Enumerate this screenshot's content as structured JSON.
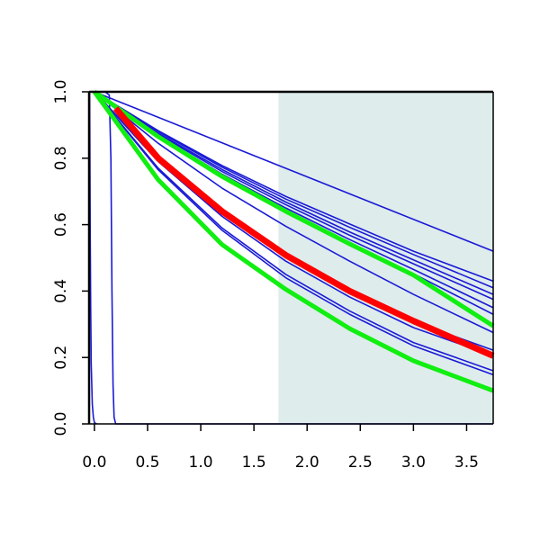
{
  "chart_data": {
    "type": "line",
    "title": "",
    "xlabel": "",
    "ylabel": "",
    "xlim": [
      -0.05,
      3.75
    ],
    "ylim": [
      0.0,
      1.0
    ],
    "grid": false,
    "legend": "none",
    "x_ticks": [
      0.0,
      0.5,
      1.0,
      1.5,
      2.0,
      2.5,
      3.0,
      3.5
    ],
    "x_tick_labels": [
      "0.0",
      "0.5",
      "1.0",
      "1.5",
      "2.0",
      "2.5",
      "3.0",
      "3.5"
    ],
    "y_ticks": [
      0.0,
      0.2,
      0.4,
      0.6,
      0.8,
      1.0
    ],
    "y_tick_labels": [
      "0.0",
      "0.2",
      "0.4",
      "0.6",
      "0.8",
      "1.0"
    ],
    "shaded_region": {
      "x_from": 1.73,
      "x_to": 3.75,
      "color": "#dfecec"
    },
    "colors": {
      "blue": "#1a1ad6",
      "red": "#ff0000",
      "green": "#11ee11",
      "frame": "#000000"
    },
    "series": [
      {
        "color": "blue",
        "width": 1.6,
        "x": [
          0,
          3.75
        ],
        "y": [
          1.0,
          0.52
        ]
      },
      {
        "color": "blue",
        "width": 1.6,
        "x": [
          0,
          0.6,
          1.2,
          1.8,
          2.4,
          3.0,
          3.75
        ],
        "y": [
          1.0,
          0.883,
          0.778,
          0.685,
          0.602,
          0.52,
          0.43
        ]
      },
      {
        "color": "blue",
        "width": 1.6,
        "x": [
          0,
          0.6,
          1.2,
          1.8,
          2.4,
          3.0,
          3.75
        ],
        "y": [
          1.0,
          0.88,
          0.773,
          0.677,
          0.592,
          0.51,
          0.41
        ]
      },
      {
        "color": "blue",
        "width": 1.6,
        "x": [
          0,
          0.6,
          1.2,
          1.8,
          2.4,
          3.0,
          3.75
        ],
        "y": [
          1.0,
          0.875,
          0.766,
          0.668,
          0.578,
          0.494,
          0.39
        ]
      },
      {
        "color": "blue",
        "width": 1.6,
        "x": [
          0,
          0.6,
          1.2,
          1.8,
          2.4,
          3.0,
          3.75
        ],
        "y": [
          1.0,
          0.872,
          0.76,
          0.66,
          0.568,
          0.482,
          0.375
        ]
      },
      {
        "color": "blue",
        "width": 1.6,
        "x": [
          0,
          0.6,
          1.2,
          1.8,
          2.4,
          3.0,
          3.75
        ],
        "y": [
          1.0,
          0.868,
          0.752,
          0.65,
          0.555,
          0.465,
          0.35
        ]
      },
      {
        "color": "blue",
        "width": 1.6,
        "x": [
          0,
          0.6,
          1.2,
          1.8,
          2.4,
          3.0,
          3.75
        ],
        "y": [
          1.0,
          0.865,
          0.746,
          0.642,
          0.545,
          0.452,
          0.33
        ]
      },
      {
        "color": "blue",
        "width": 1.6,
        "x": [
          0,
          0.6,
          1.2,
          1.8,
          2.4,
          3.0,
          3.75
        ],
        "y": [
          1.0,
          0.845,
          0.71,
          0.595,
          0.49,
          0.39,
          0.275
        ]
      },
      {
        "color": "blue",
        "width": 1.6,
        "x": [
          0,
          0.6,
          1.2,
          1.8,
          2.4,
          3.0,
          3.75
        ],
        "y": [
          1.0,
          0.795,
          0.635,
          0.505,
          0.4,
          0.308,
          0.222
        ]
      },
      {
        "color": "blue",
        "width": 1.6,
        "x": [
          0,
          0.6,
          1.2,
          1.8,
          2.4,
          3.0,
          3.75
        ],
        "y": [
          1.0,
          0.79,
          0.625,
          0.49,
          0.382,
          0.29,
          0.205
        ]
      },
      {
        "color": "blue",
        "width": 1.6,
        "x": [
          0,
          0.6,
          1.2,
          1.8,
          2.4,
          3.0,
          3.75
        ],
        "y": [
          1.0,
          0.77,
          0.59,
          0.45,
          0.34,
          0.245,
          0.16
        ]
      },
      {
        "color": "blue",
        "width": 1.6,
        "x": [
          0,
          0.6,
          1.2,
          1.8,
          2.4,
          3.0,
          3.75
        ],
        "y": [
          1.0,
          0.765,
          0.583,
          0.44,
          0.33,
          0.235,
          0.148
        ]
      },
      {
        "color": "blue",
        "width": 1.6,
        "x": [
          -0.045,
          -0.043,
          -0.04,
          -0.035,
          -0.03,
          -0.02,
          -0.01,
          0.0,
          0.02
        ],
        "y": [
          1.0,
          0.85,
          0.6,
          0.35,
          0.18,
          0.06,
          0.02,
          0.004,
          0.0
        ]
      },
      {
        "color": "blue",
        "width": 1.6,
        "x": [
          -0.03,
          0.1,
          0.14,
          0.155,
          0.165,
          0.175,
          0.185,
          0.2,
          3.75
        ],
        "y": [
          1.0,
          1.0,
          0.99,
          0.8,
          0.4,
          0.12,
          0.02,
          0.0,
          0.0
        ]
      },
      {
        "color": "green",
        "width": 5,
        "x": [
          0,
          0.6,
          1.2,
          1.8,
          2.4,
          3.0,
          3.75
        ],
        "y": [
          1.0,
          0.865,
          0.745,
          0.64,
          0.542,
          0.448,
          0.295
        ]
      },
      {
        "color": "green",
        "width": 5,
        "x": [
          0,
          0.6,
          1.2,
          1.8,
          2.4,
          3.0,
          3.75
        ],
        "y": [
          1.0,
          0.735,
          0.54,
          0.405,
          0.287,
          0.19,
          0.1
        ]
      },
      {
        "color": "red",
        "width": 7,
        "x": [
          0.2,
          0.6,
          1.2,
          1.8,
          2.4,
          3.0,
          3.75
        ],
        "y": [
          0.95,
          0.8,
          0.64,
          0.508,
          0.4,
          0.31,
          0.205
        ]
      }
    ]
  }
}
